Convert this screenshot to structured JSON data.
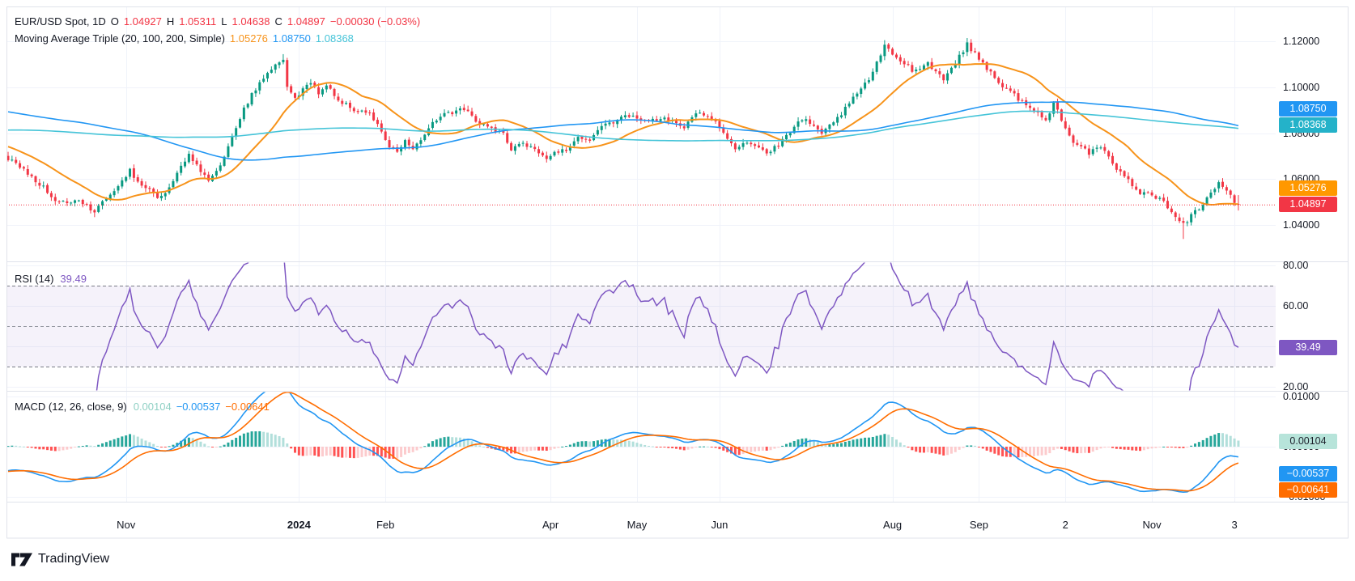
{
  "header": {
    "symbol_line": {
      "title": "EUR/USD Spot, 1D",
      "o_label": "O",
      "o": "1.04927",
      "h_label": "H",
      "h": "1.05311",
      "l_label": "L",
      "l": "1.04638",
      "c_label": "C",
      "c": "1.04897",
      "change": "−0.00030 (−0.03%)"
    },
    "ma_line": {
      "title": "Moving Average Triple (20, 100, 200, Simple)",
      "ma20": "1.05276",
      "ma100": "1.08750",
      "ma200": "1.08368"
    }
  },
  "rsi_pane": {
    "label": "RSI (14)",
    "value": "39.49",
    "badge": "39.49",
    "ticks": [
      {
        "text": "80.00",
        "value": 80
      },
      {
        "text": "60.00",
        "value": 60
      },
      {
        "text": "40.00",
        "value": 40
      },
      {
        "text": "20.00",
        "value": 20
      }
    ],
    "band_upper": 70,
    "band_lower": 30,
    "mid": 50
  },
  "macd_pane": {
    "label": "MACD (12, 26, close, 9)",
    "hist": "0.00104",
    "macd": "−0.00537",
    "signal": "−0.00641",
    "ticks": [
      {
        "text": "0.01000",
        "value": 0.01
      },
      {
        "text": "0.00000",
        "value": 0
      },
      {
        "text": "−0.01000",
        "value": -0.01
      }
    ]
  },
  "price_scale": {
    "ticks": [
      {
        "text": "1.12000",
        "value": 1.12
      },
      {
        "text": "1.10000",
        "value": 1.1
      },
      {
        "text": "1.08000",
        "value": 1.08
      },
      {
        "text": "1.06000",
        "value": 1.06
      },
      {
        "text": "1.04000",
        "value": 1.04
      }
    ],
    "badges": {
      "ma100": "1.08750",
      "ma200": "1.08368",
      "ma20": "1.05276",
      "last": "1.04897"
    }
  },
  "time_axis": {
    "labels": [
      {
        "text": "Nov",
        "day": 30,
        "bold": false
      },
      {
        "text": "2024",
        "day": 74,
        "bold": true
      },
      {
        "text": "Feb",
        "day": 96,
        "bold": false
      },
      {
        "text": "Apr",
        "day": 138,
        "bold": false
      },
      {
        "text": "May",
        "day": 160,
        "bold": false
      },
      {
        "text": "Jun",
        "day": 181,
        "bold": false
      },
      {
        "text": "Aug",
        "day": 225,
        "bold": false
      },
      {
        "text": "Sep",
        "day": 247,
        "bold": false
      },
      {
        "text": "2",
        "day": 269,
        "bold": false
      },
      {
        "text": "Nov",
        "day": 291,
        "bold": false
      },
      {
        "text": "3",
        "day": 312,
        "bold": false
      }
    ]
  },
  "footer": {
    "brand": "TradingView"
  },
  "colors": {
    "up": "#089981",
    "down": "#F23645",
    "sma20": "#F7931A",
    "sma100": "#2196F3",
    "sma200": "#45C4D8",
    "rsi": "#7E57C2",
    "rsi_band": "rgba(126,87,194,0.08)",
    "rsi_dash": "#787b86",
    "rsi_mid_dash": "#9598a1",
    "macd": "#2196F3",
    "signal": "#FF6D00",
    "hist_up_grow": "#26A69A",
    "hist_up_fall": "#B2DFDB",
    "hist_dn_fall": "#FF5252",
    "hist_dn_grow": "#FCCBCD",
    "grid": "#f0f3fa",
    "border": "#e0e3eb",
    "text": "#131722",
    "dotted": "#F23645",
    "badge_ma100": "#2196F3",
    "badge_ma200": "#24B2C9",
    "badge_ma20": "#FF9800",
    "badge_last": "#F23645",
    "badge_rsi": "#7E57C2",
    "badge_hist_bg": "#B7E4DA",
    "badge_hist_text": "#1e222d",
    "badge_macd": "#2196F3",
    "badge_signal": "#FF6D00",
    "legend_hist_val": "#8FD0C4"
  },
  "chart_data": {
    "type": "candlestick",
    "symbol": "EUR/USD Spot",
    "interval": "1D",
    "price_axis": {
      "min": 1.033,
      "max": 1.1235,
      "ticks": [
        1.12,
        1.1,
        1.08,
        1.06,
        1.04
      ]
    },
    "last_bar": {
      "open": 1.04927,
      "high": 1.05311,
      "low": 1.04638,
      "close": 1.04897
    },
    "last_close_line": 1.04897,
    "overlays": [
      {
        "name": "SMA",
        "length": 20,
        "last": 1.05276
      },
      {
        "name": "SMA",
        "length": 100,
        "last": 1.0875
      },
      {
        "name": "SMA",
        "length": 200,
        "last": 1.08368
      }
    ],
    "oscillators": [
      {
        "name": "RSI",
        "length": 14,
        "last": 39.49,
        "levels": [
          70,
          50,
          30
        ],
        "range": [
          20,
          80
        ]
      },
      {
        "name": "MACD",
        "fast": 12,
        "slow": 26,
        "source": "close",
        "signal_len": 9,
        "last_macd": -0.00537,
        "last_signal": -0.00641,
        "last_hist": 0.00104,
        "ticks": [
          0.01,
          0,
          -0.01
        ]
      }
    ],
    "bars_total": 314,
    "close_anchors": [
      [
        -220,
        1.06
      ],
      [
        -200,
        1.065
      ],
      [
        -180,
        1.0745
      ],
      [
        -160,
        1.068
      ],
      [
        -140,
        1.056
      ],
      [
        -120,
        1.0855
      ],
      [
        -100,
        1.0995
      ],
      [
        -85,
        1.0705
      ],
      [
        -70,
        1.0905
      ],
      [
        -55,
        1.1195
      ],
      [
        -45,
        1.1045
      ],
      [
        -30,
        1.0875
      ],
      [
        -15,
        1.0785
      ],
      [
        -5,
        1.0705
      ],
      [
        0,
        1.069
      ],
      [
        4,
        1.0645
      ],
      [
        9,
        1.0565
      ],
      [
        13,
        1.0495
      ],
      [
        18,
        1.0515
      ],
      [
        22,
        1.0455
      ],
      [
        24,
        1.0505
      ],
      [
        27,
        1.0545
      ],
      [
        31,
        1.0635
      ],
      [
        34,
        1.0575
      ],
      [
        38,
        1.0525
      ],
      [
        41,
        1.0555
      ],
      [
        46,
        1.0715
      ],
      [
        49,
        1.0635
      ],
      [
        51,
        1.0595
      ],
      [
        54,
        1.0665
      ],
      [
        57,
        1.0785
      ],
      [
        60,
        1.0905
      ],
      [
        63,
        1.0995
      ],
      [
        66,
        1.1065
      ],
      [
        70,
        1.1115
      ],
      [
        71,
        1.1005
      ],
      [
        73,
        1.0955
      ],
      [
        77,
        1.1015
      ],
      [
        79,
        1.0975
      ],
      [
        81,
        1.1005
      ],
      [
        85,
        1.0935
      ],
      [
        89,
        1.0895
      ],
      [
        92,
        1.0885
      ],
      [
        95,
        1.0805
      ],
      [
        97,
        1.0745
      ],
      [
        99,
        1.072
      ],
      [
        101,
        1.076
      ],
      [
        103,
        1.073
      ],
      [
        105,
        1.0765
      ],
      [
        108,
        1.0855
      ],
      [
        111,
        1.0885
      ],
      [
        116,
        1.0905
      ],
      [
        119,
        1.0855
      ],
      [
        126,
        1.0795
      ],
      [
        128,
        1.073
      ],
      [
        131,
        1.0755
      ],
      [
        137,
        1.0695
      ],
      [
        139,
        1.0715
      ],
      [
        142,
        1.0725
      ],
      [
        145,
        1.0785
      ],
      [
        148,
        1.0775
      ],
      [
        151,
        1.0835
      ],
      [
        158,
        1.0875
      ],
      [
        161,
        1.0855
      ],
      [
        167,
        1.0865
      ],
      [
        172,
        1.0825
      ],
      [
        176,
        1.0895
      ],
      [
        180,
        1.0855
      ],
      [
        185,
        1.0735
      ],
      [
        188,
        1.0765
      ],
      [
        193,
        1.0715
      ],
      [
        196,
        1.0745
      ],
      [
        202,
        1.0865
      ],
      [
        207,
        1.0795
      ],
      [
        213,
        1.0905
      ],
      [
        219,
        1.1035
      ],
      [
        223,
        1.1175
      ],
      [
        230,
        1.1075
      ],
      [
        234,
        1.1105
      ],
      [
        238,
        1.1035
      ],
      [
        244,
        1.1185
      ],
      [
        248,
        1.1105
      ],
      [
        253,
        1.1005
      ],
      [
        259,
        1.0925
      ],
      [
        264,
        1.0855
      ],
      [
        266,
        1.093
      ],
      [
        271,
        1.0765
      ],
      [
        275,
        1.0715
      ],
      [
        278,
        1.0735
      ],
      [
        283,
        1.0625
      ],
      [
        288,
        1.0545
      ],
      [
        292,
        1.0525
      ],
      [
        296,
        1.0465
      ],
      [
        299,
        1.0405
      ],
      [
        303,
        1.0475
      ],
      [
        308,
        1.0585
      ],
      [
        310,
        1.0555
      ],
      [
        312,
        1.0497
      ],
      [
        313,
        1.04897
      ]
    ],
    "extremes": [
      {
        "day": 22,
        "low": 1.0435
      },
      {
        "day": 70,
        "high": 1.1144
      },
      {
        "day": 223,
        "high": 1.1205
      },
      {
        "day": 244,
        "high": 1.1214
      },
      {
        "day": 299,
        "low": 1.034
      }
    ]
  }
}
